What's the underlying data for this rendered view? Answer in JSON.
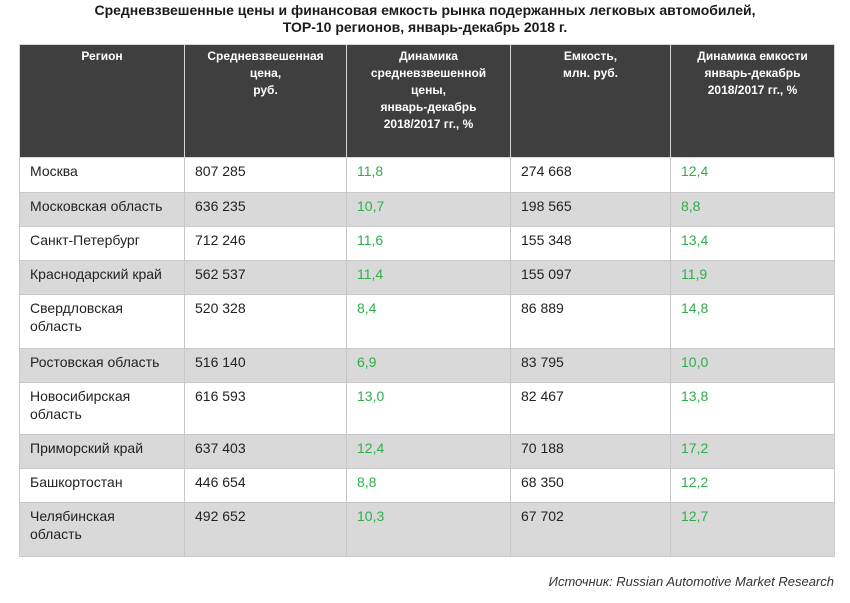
{
  "title_line1": "Средневзвешенные цены и финансовая емкость рынка подержанных легковых автомобилей,",
  "title_line2": "ТОР-10 регионов, январь-декабрь 2018 г.",
  "headers": {
    "region": "Регион",
    "price": "Средневзвешенная\nцена,\nруб.",
    "price_dynamics": "Динамика\nсредневзвешенной\nцены,\nянварь-декабрь\n2018/2017 гг., %",
    "capacity": "Емкость,\nмлн. руб.",
    "capacity_dynamics": "Динамика емкости\nянварь-декабрь\n2018/2017 гг., %"
  },
  "rows": [
    {
      "region": "Москва",
      "price": "807 285",
      "price_dynamics": "11,8",
      "capacity": "274 668",
      "capacity_dynamics": "12,4"
    },
    {
      "region": "Московская область",
      "price": "636 235",
      "price_dynamics": "10,7",
      "capacity": "198 565",
      "capacity_dynamics": "8,8"
    },
    {
      "region": "Санкт-Петербург",
      "price": "712 246",
      "price_dynamics": "11,6",
      "capacity": "155 348",
      "capacity_dynamics": "13,4"
    },
    {
      "region": "Краснодарский край",
      "price": "562 537",
      "price_dynamics": "11,4",
      "capacity": "155 097",
      "capacity_dynamics": "11,9"
    },
    {
      "region": "Свердловская\nобласть",
      "price": "520 328",
      "price_dynamics": "8,4",
      "capacity": "86 889",
      "capacity_dynamics": "14,8"
    },
    {
      "region": "Ростовская область",
      "price": "516 140",
      "price_dynamics": "6,9",
      "capacity": "83 795",
      "capacity_dynamics": "10,0"
    },
    {
      "region": "Новосибирская\nобласть",
      "price": "616 593",
      "price_dynamics": "13,0",
      "capacity": "82 467",
      "capacity_dynamics": "13,8"
    },
    {
      "region": "Приморский край",
      "price": "637 403",
      "price_dynamics": "12,4",
      "capacity": "70 188",
      "capacity_dynamics": "17,2"
    },
    {
      "region": "Башкортостан",
      "price": "446 654",
      "price_dynamics": "8,8",
      "capacity": "68 350",
      "capacity_dynamics": "12,2"
    },
    {
      "region": "Челябинская\nобласть",
      "price": "492 652",
      "price_dynamics": "10,3",
      "capacity": "67 702",
      "capacity_dynamics": "12,7"
    }
  ],
  "source": "Источник: Russian Automotive Market Research",
  "colors": {
    "header_bg": "#3f3f3f",
    "stripe_bg": "#d9d9d9",
    "dynamics_text": "#2fae4c"
  }
}
